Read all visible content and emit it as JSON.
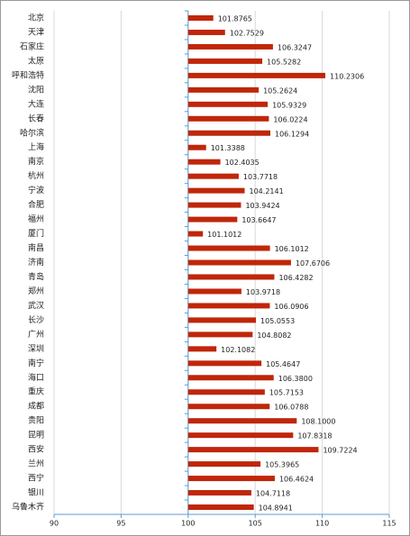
{
  "chart_data": {
    "type": "barh",
    "categories": [
      "北京",
      "天津",
      "石家庄",
      "太原",
      "呼和浩特",
      "沈阳",
      "大连",
      "长春",
      "哈尔滨",
      "上海",
      "南京",
      "杭州",
      "宁波",
      "合肥",
      "福州",
      "厦门",
      "南昌",
      "济南",
      "青岛",
      "郑州",
      "武汉",
      "长沙",
      "广州",
      "深圳",
      "南宁",
      "海口",
      "重庆",
      "成都",
      "贵阳",
      "昆明",
      "西安",
      "兰州",
      "西宁",
      "银川",
      "乌鲁木齐"
    ],
    "values": [
      101.8765,
      102.7529,
      106.3247,
      105.5282,
      110.2306,
      105.2624,
      105.9329,
      106.0224,
      106.1294,
      101.3388,
      102.4035,
      103.7718,
      104.2141,
      103.9424,
      103.6647,
      101.1012,
      106.1012,
      107.6706,
      106.4282,
      103.9718,
      106.0906,
      105.0553,
      104.8082,
      102.1082,
      105.4647,
      106.38,
      105.7153,
      106.0788,
      108.1,
      107.8318,
      109.7224,
      105.3965,
      106.4624,
      104.7118,
      104.8941
    ],
    "value_labels": [
      "101.8765",
      "102.7529",
      "106.3247",
      "105.5282",
      "110.2306",
      "105.2624",
      "105.9329",
      "106.0224",
      "106.1294",
      "101.3388",
      "102.4035",
      "103.7718",
      "104.2141",
      "103.9424",
      "103.6647",
      "101.1012",
      "106.1012",
      "107.6706",
      "106.4282",
      "103.9718",
      "106.0906",
      "105.0553",
      "104.8082",
      "102.1082",
      "105.4647",
      "106.3800",
      "105.7153",
      "106.0788",
      "108.1000",
      "107.8318",
      "109.7224",
      "105.3965",
      "106.4624",
      "104.7118",
      "104.8941"
    ],
    "color": "#c0260a",
    "bar_base": 100,
    "xlim": [
      90,
      115
    ],
    "xticks": [
      90,
      95,
      100,
      105,
      110,
      115
    ],
    "grid": true
  }
}
